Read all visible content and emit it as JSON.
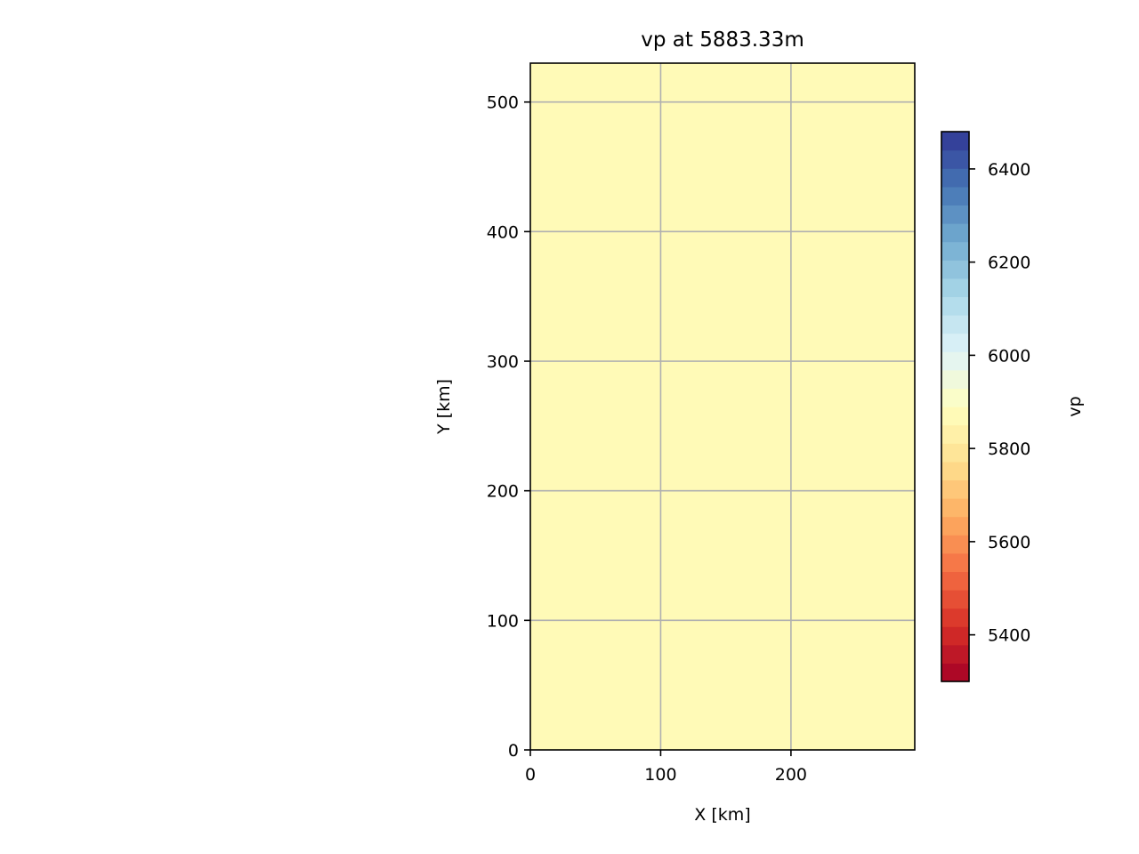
{
  "chart_data": {
    "type": "heatmap",
    "title": "vp at 5883.33m",
    "xlabel": "X [km]",
    "ylabel": "Y [km]",
    "xlim": [
      0,
      295
    ],
    "ylim": [
      0,
      530
    ],
    "x_ticks": [
      "0",
      "100",
      "200"
    ],
    "x_tick_values": [
      0,
      100,
      200
    ],
    "y_ticks": [
      "0",
      "100",
      "200",
      "300",
      "400",
      "500"
    ],
    "y_tick_values": [
      0,
      100,
      200,
      300,
      400,
      500
    ],
    "grid": true,
    "field": {
      "name": "vp",
      "value": 5883.33,
      "uniform": true
    },
    "colorbar": {
      "label": "vp",
      "colormap": "RdYlBu",
      "range": [
        5300,
        6480
      ],
      "levels": 30,
      "ticks": [
        "5400",
        "5600",
        "5800",
        "6000",
        "6200",
        "6400"
      ],
      "tick_values": [
        5400,
        5600,
        5800,
        6000,
        6200,
        6400
      ],
      "colors": [
        "#a50026",
        "#d73027",
        "#f46d43",
        "#fdae61",
        "#fee090",
        "#ffffbf",
        "#e0f3f8",
        "#abd9e9",
        "#74add1",
        "#4575b4",
        "#313695"
      ]
    }
  }
}
